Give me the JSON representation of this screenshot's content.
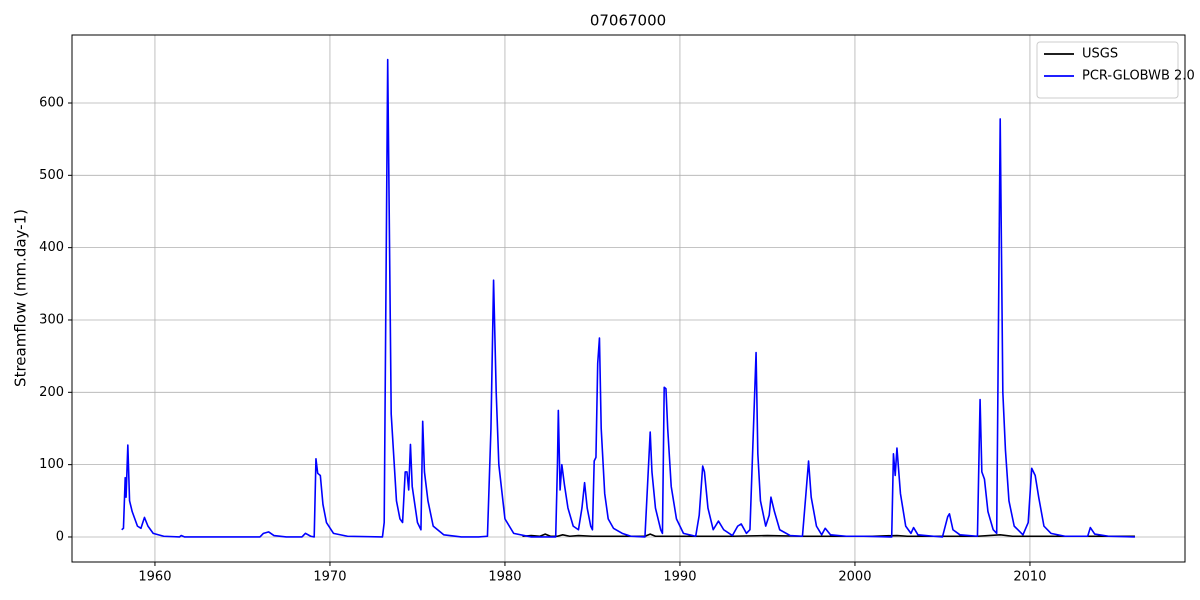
{
  "chart_data": {
    "type": "line",
    "title": "07067000",
    "y_label": "Streamflow (mm.day-1)",
    "xlim": [
      1955.26,
      2018.86
    ],
    "xticks": [
      1960,
      1970,
      1980,
      1990,
      2000,
      2010
    ],
    "ylim": [
      -34.6,
      694
    ],
    "yticks": [
      0,
      100,
      200,
      300,
      400,
      500,
      600
    ],
    "grid": true,
    "legend": "upper right",
    "series": [
      {
        "name": "USGS",
        "color": "#000000",
        "x": [
          1981.0,
          1981.5,
          1982.0,
          1982.3,
          1982.6,
          1983.0,
          1983.3,
          1983.7,
          1984.2,
          1985.0,
          1986.0,
          1987.0,
          1988.0,
          1988.3,
          1988.6,
          1989.5,
          1991.0,
          1993.0,
          1995.0,
          1997.0,
          1999.0,
          2001.0,
          2002.4,
          2003.0,
          2005.0,
          2007.0,
          2008.3,
          2009.0,
          2011.0,
          2013.0,
          2015.0,
          2016.0
        ],
        "values": [
          1,
          2,
          1,
          4,
          1,
          1,
          3,
          1,
          2,
          1,
          1,
          1,
          1,
          4,
          1,
          1,
          1,
          1,
          2,
          1,
          1,
          1,
          2,
          1,
          1,
          1,
          3,
          1,
          1,
          1,
          1,
          1
        ]
      },
      {
        "name": "PCR-GLOBWB 2.0",
        "color": "#0000ff",
        "x": [
          1958.1,
          1958.2,
          1958.3,
          1958.35,
          1958.45,
          1958.55,
          1958.7,
          1959.0,
          1959.2,
          1959.4,
          1959.6,
          1959.9,
          1960.5,
          1961.4,
          1961.5,
          1961.7,
          1966.0,
          1966.2,
          1966.5,
          1966.8,
          1967.5,
          1968.4,
          1968.6,
          1968.9,
          1969.1,
          1969.2,
          1969.3,
          1969.45,
          1969.6,
          1969.8,
          1970.2,
          1971.0,
          1973.0,
          1973.1,
          1973.3,
          1973.5,
          1973.8,
          1974.0,
          1974.15,
          1974.3,
          1974.4,
          1974.5,
          1974.6,
          1974.7,
          1975.0,
          1975.2,
          1975.3,
          1975.4,
          1975.6,
          1975.9,
          1976.5,
          1977.5,
          1978.5,
          1979.0,
          1979.2,
          1979.35,
          1979.5,
          1979.65,
          1980.0,
          1980.5,
          1981.5,
          1982.9,
          1983.0,
          1983.05,
          1983.15,
          1983.25,
          1983.4,
          1983.6,
          1983.9,
          1984.2,
          1984.4,
          1984.55,
          1984.7,
          1984.9,
          1985.0,
          1985.1,
          1985.2,
          1985.3,
          1985.4,
          1985.5,
          1985.7,
          1985.9,
          1986.2,
          1986.7,
          1987.2,
          1988.0,
          1988.3,
          1988.4,
          1988.6,
          1988.9,
          1989.0,
          1989.1,
          1989.2,
          1989.3,
          1989.5,
          1989.8,
          1990.2,
          1990.9,
          1991.1,
          1991.3,
          1991.4,
          1991.6,
          1991.9,
          1992.2,
          1992.5,
          1993.0,
          1993.3,
          1993.5,
          1993.8,
          1994.0,
          1994.2,
          1994.35,
          1994.45,
          1994.6,
          1994.9,
          1995.1,
          1995.2,
          1995.4,
          1995.7,
          1996.3,
          1997.0,
          1997.2,
          1997.35,
          1997.5,
          1997.8,
          1998.1,
          1998.3,
          1998.6,
          1999.5,
          2000.5,
          2002.1,
          2002.2,
          2002.3,
          2002.4,
          2002.6,
          2002.9,
          2003.2,
          2003.35,
          2003.6,
          2004.5,
          2005.0,
          2005.3,
          2005.4,
          2005.6,
          2006.0,
          2007.0,
          2007.15,
          2007.25,
          2007.4,
          2007.6,
          2007.9,
          2008.1,
          2008.3,
          2008.45,
          2008.6,
          2008.8,
          2009.1,
          2009.6,
          2009.9,
          2010.1,
          2010.3,
          2010.5,
          2010.8,
          2011.2,
          2012.0,
          2013.3,
          2013.45,
          2013.7,
          2014.5,
          2016.0
        ],
        "values": [
          10,
          12,
          82,
          55,
          127,
          50,
          35,
          15,
          12,
          27,
          15,
          5,
          1,
          0,
          2,
          0,
          0,
          5,
          7,
          2,
          0,
          0,
          5,
          1,
          0,
          108,
          88,
          85,
          45,
          20,
          5,
          1,
          0,
          20,
          660,
          170,
          50,
          25,
          20,
          90,
          90,
          65,
          128,
          70,
          20,
          10,
          160,
          90,
          50,
          15,
          3,
          0,
          0,
          1,
          150,
          355,
          200,
          100,
          25,
          5,
          0,
          0,
          100,
          175,
          65,
          100,
          72,
          40,
          15,
          10,
          40,
          75,
          40,
          15,
          10,
          105,
          110,
          240,
          275,
          150,
          60,
          25,
          12,
          5,
          1,
          0,
          145,
          90,
          40,
          10,
          5,
          207,
          205,
          150,
          70,
          25,
          5,
          1,
          30,
          98,
          90,
          40,
          10,
          22,
          10,
          2,
          15,
          18,
          5,
          10,
          150,
          255,
          115,
          50,
          15,
          30,
          55,
          35,
          10,
          2,
          1,
          60,
          105,
          55,
          15,
          3,
          12,
          3,
          1,
          1,
          0,
          115,
          85,
          123,
          60,
          15,
          5,
          13,
          3,
          1,
          0,
          28,
          32,
          10,
          3,
          1,
          190,
          90,
          80,
          35,
          10,
          5,
          578,
          200,
          120,
          50,
          15,
          3,
          20,
          95,
          85,
          55,
          15,
          5,
          1,
          1,
          13,
          4,
          1,
          0
        ]
      }
    ]
  }
}
